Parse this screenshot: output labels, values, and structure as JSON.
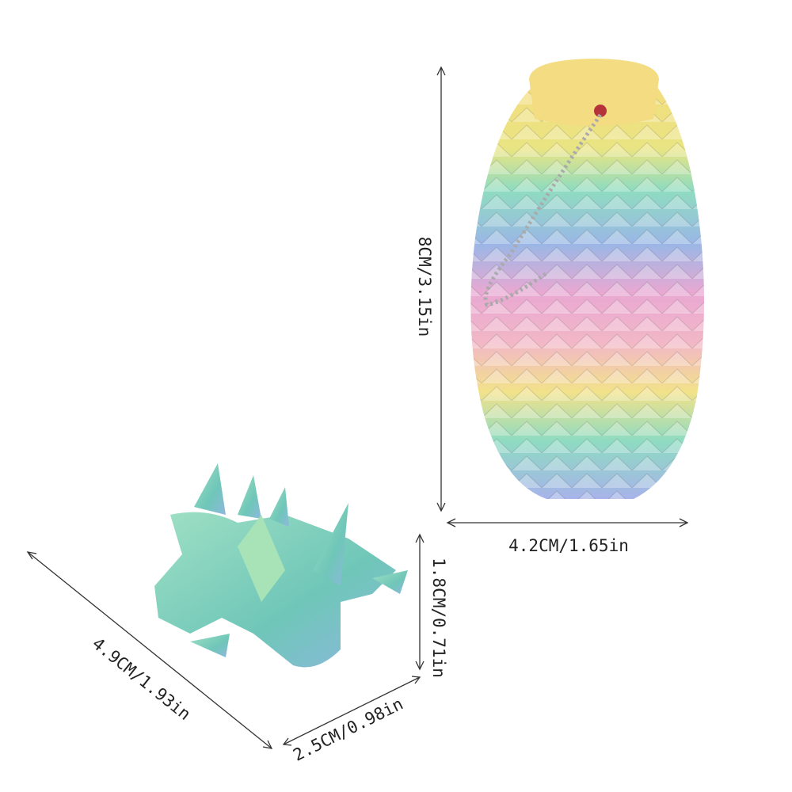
{
  "egg": {
    "height_label": "8CM/3.15in",
    "width_label": "4.2CM/1.65in"
  },
  "dragon": {
    "height_label": "1.8CM/0.71in",
    "length_label": "4.9CM/1.93in",
    "width_label": "2.5CM/0.98in"
  }
}
